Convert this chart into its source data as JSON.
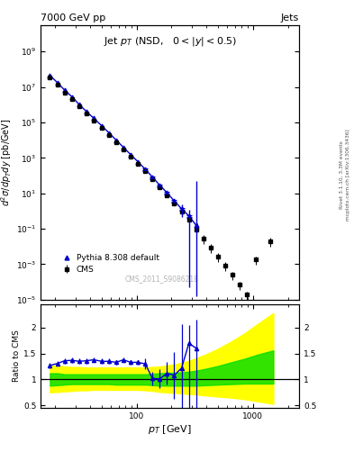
{
  "title_left": "7000 GeV pp",
  "title_right": "Jets",
  "plot_title": "Jet $p_T$ (NSD,   $0 < |y| < 0.5$)",
  "watermark": "CMS_2011_S9086218",
  "xlabel": "$p_T$ [GeV]",
  "ylabel": "$d^2\\sigma/dp_Tdy$ [pb/GeV]",
  "ratio_ylabel": "Ratio to CMS",
  "cms_label": "CMS",
  "pythia_label": "Pythia 8.308 default",
  "cms_data_x": [
    18,
    21,
    24,
    28,
    32,
    37,
    43,
    50,
    58,
    67,
    77,
    89,
    103,
    119,
    137,
    158,
    183,
    211,
    244,
    282,
    326,
    376,
    434,
    502,
    580,
    670,
    774,
    894,
    1060,
    1400
  ],
  "cms_data_y": [
    35000000.0,
    13000000.0,
    5000000.0,
    2000000.0,
    780000.0,
    310000.0,
    123000.0,
    49000.0,
    19000.0,
    7500,
    2900,
    1150,
    450,
    170,
    62,
    22,
    8.0,
    2.8,
    0.95,
    0.31,
    0.095,
    0.028,
    0.009,
    0.0028,
    0.00085,
    0.00025,
    7e-05,
    1.9e-05,
    0.0018,
    0.02
  ],
  "cms_data_yerr_lo": [
    0.05,
    0.05,
    0.05,
    0.05,
    0.05,
    0.05,
    0.05,
    0.05,
    0.05,
    0.05,
    0.05,
    0.05,
    0.05,
    0.07,
    0.08,
    0.1,
    0.12,
    0.15,
    0.2,
    0.3,
    0.5,
    0.5,
    0.5,
    0.5,
    0.5,
    0.5,
    0.5,
    0.5,
    0.5,
    0.5
  ],
  "pythia_x": [
    18,
    21,
    24,
    28,
    32,
    37,
    43,
    50,
    58,
    67,
    77,
    89,
    103,
    119,
    137,
    158,
    183,
    211,
    244,
    282,
    326
  ],
  "pythia_y": [
    45000000.0,
    17000000.0,
    6800000.0,
    2700000.0,
    1050000.0,
    420000.0,
    169000.0,
    66000.0,
    25600.0,
    9950,
    3980,
    1530,
    600,
    225,
    83,
    29,
    10.7,
    3.7,
    1.35,
    0.53,
    0.155
  ],
  "pythia_yerr_lo": [
    0,
    0,
    0,
    0,
    0,
    0,
    0,
    0,
    0,
    0,
    0,
    0,
    0,
    0.3,
    0.4,
    0.5,
    0.6,
    0.8,
    0.9,
    0.7,
    50
  ],
  "pythia_yerr_hi": [
    0,
    0,
    0,
    0,
    0,
    0,
    0,
    0,
    0,
    0,
    0,
    0,
    0,
    0.3,
    0.4,
    0.5,
    0.6,
    0.8,
    0.9,
    0.7,
    50
  ],
  "ratio_x": [
    18,
    21,
    24,
    28,
    32,
    37,
    43,
    50,
    58,
    67,
    77,
    89,
    103,
    119,
    137,
    158,
    183,
    211,
    244,
    282,
    326
  ],
  "ratio_y": [
    1.27,
    1.31,
    1.36,
    1.37,
    1.35,
    1.36,
    1.38,
    1.35,
    1.35,
    1.33,
    1.38,
    1.33,
    1.33,
    1.3,
    1.02,
    1.01,
    1.12,
    1.08,
    1.22,
    1.7,
    1.6
  ],
  "ratio_yerr_lo": [
    0.05,
    0.05,
    0.05,
    0.05,
    0.05,
    0.05,
    0.05,
    0.05,
    0.05,
    0.05,
    0.05,
    0.05,
    0.05,
    0.1,
    0.13,
    0.18,
    0.22,
    0.45,
    0.85,
    1.3,
    1.2
  ],
  "ratio_yerr_hi": [
    0.05,
    0.05,
    0.05,
    0.05,
    0.05,
    0.05,
    0.05,
    0.05,
    0.05,
    0.05,
    0.05,
    0.05,
    0.05,
    0.1,
    0.13,
    0.18,
    0.22,
    0.45,
    0.85,
    0.35,
    0.55
  ],
  "green_band_x": [
    18,
    21,
    24,
    28,
    32,
    37,
    43,
    50,
    58,
    67,
    77,
    89,
    103,
    119,
    137,
    158,
    183,
    211,
    244,
    282,
    326,
    400,
    500,
    650,
    850,
    1100,
    1500
  ],
  "green_band_lo": [
    0.88,
    0.89,
    0.9,
    0.91,
    0.91,
    0.91,
    0.91,
    0.91,
    0.91,
    0.9,
    0.9,
    0.9,
    0.9,
    0.9,
    0.89,
    0.88,
    0.88,
    0.88,
    0.88,
    0.88,
    0.88,
    0.89,
    0.9,
    0.91,
    0.92,
    0.92,
    0.92
  ],
  "green_band_hi": [
    1.12,
    1.12,
    1.1,
    1.1,
    1.1,
    1.1,
    1.1,
    1.1,
    1.1,
    1.1,
    1.1,
    1.1,
    1.1,
    1.1,
    1.11,
    1.12,
    1.13,
    1.13,
    1.14,
    1.15,
    1.17,
    1.21,
    1.26,
    1.33,
    1.4,
    1.48,
    1.56
  ],
  "yellow_band_x": [
    18,
    21,
    24,
    28,
    32,
    37,
    43,
    50,
    58,
    67,
    77,
    89,
    103,
    119,
    137,
    158,
    183,
    211,
    244,
    282,
    326,
    400,
    500,
    650,
    850,
    1100,
    1500
  ],
  "yellow_band_lo": [
    0.75,
    0.76,
    0.77,
    0.78,
    0.79,
    0.79,
    0.8,
    0.8,
    0.8,
    0.8,
    0.8,
    0.8,
    0.8,
    0.79,
    0.78,
    0.76,
    0.75,
    0.74,
    0.73,
    0.72,
    0.71,
    0.69,
    0.67,
    0.65,
    0.62,
    0.58,
    0.53
  ],
  "yellow_band_hi": [
    1.27,
    1.27,
    1.25,
    1.24,
    1.24,
    1.23,
    1.23,
    1.23,
    1.23,
    1.23,
    1.23,
    1.23,
    1.23,
    1.23,
    1.24,
    1.25,
    1.27,
    1.29,
    1.32,
    1.36,
    1.41,
    1.49,
    1.59,
    1.73,
    1.89,
    2.07,
    2.28
  ],
  "cms_color": "#000000",
  "pythia_color": "#0000cc",
  "green_color": "#00dd00",
  "yellow_color": "#ffff00",
  "ylim_main": [
    1e-05,
    30000000000.0
  ],
  "xlim": [
    15,
    2500
  ],
  "ratio_ylim": [
    0.45,
    2.45
  ],
  "right_text1": "Rivet 3.1.10, 3.3M events",
  "right_text2": "mcplots.cern.ch [arXiv:1306.3436]"
}
